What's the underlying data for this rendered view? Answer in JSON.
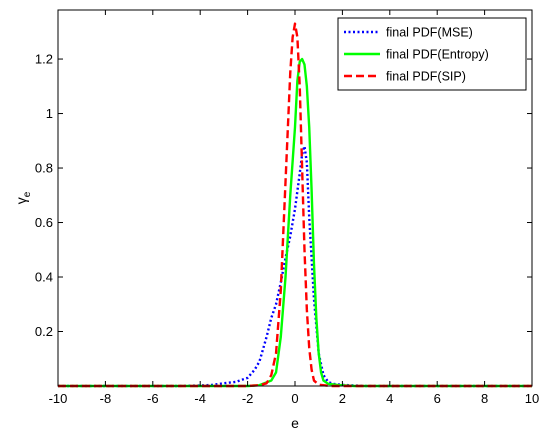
{
  "chart_data": {
    "type": "line",
    "xlabel": "e",
    "ylabel_main": "γ",
    "ylabel_sub": "e",
    "xlim": [
      -10,
      10
    ],
    "ylim": [
      0,
      1.38
    ],
    "xticks": [
      -10,
      -8,
      -6,
      -4,
      -2,
      0,
      2,
      4,
      6,
      8,
      10
    ],
    "yticks": [
      0.2,
      0.4,
      0.6,
      0.8,
      1,
      1.2
    ],
    "legend_position": "top-right",
    "grid": false,
    "series": [
      {
        "name": "final PDF(MSE)",
        "color": "#0000ff",
        "style": "dotted",
        "x": [
          -10,
          -5,
          -4,
          -3.5,
          -3,
          -2.5,
          -2,
          -1.7,
          -1.5,
          -1.2,
          -1,
          -0.8,
          -0.6,
          -0.4,
          -0.2,
          0,
          0.2,
          0.3,
          0.4,
          0.5,
          0.6,
          0.8,
          1.0,
          1.2,
          1.4,
          1.6,
          2,
          2.5,
          3,
          10
        ],
        "y": [
          0,
          0,
          0.002,
          0.004,
          0.01,
          0.015,
          0.03,
          0.06,
          0.09,
          0.18,
          0.25,
          0.3,
          0.38,
          0.47,
          0.55,
          0.65,
          0.78,
          0.85,
          0.88,
          0.82,
          0.62,
          0.32,
          0.12,
          0.04,
          0.015,
          0.008,
          0.004,
          0.002,
          0,
          0
        ]
      },
      {
        "name": "final PDF(Entropy)",
        "color": "#00ff00",
        "style": "solid",
        "x": [
          -10,
          -2,
          -1.5,
          -1,
          -0.8,
          -0.6,
          -0.4,
          -0.2,
          0,
          0.1,
          0.2,
          0.3,
          0.4,
          0.5,
          0.6,
          0.7,
          0.8,
          0.9,
          1.0,
          1.1,
          1.2,
          1.4,
          1.8,
          2.5,
          10
        ],
        "y": [
          0,
          0,
          0.003,
          0.02,
          0.05,
          0.18,
          0.4,
          0.7,
          0.95,
          1.12,
          1.19,
          1.2,
          1.18,
          1.1,
          0.95,
          0.72,
          0.45,
          0.25,
          0.12,
          0.05,
          0.02,
          0.008,
          0.004,
          0,
          0
        ]
      },
      {
        "name": "final PDF(SIP)",
        "color": "#ff0000",
        "style": "dashed",
        "x": [
          -10,
          -2,
          -1.5,
          -1.2,
          -1,
          -0.8,
          -0.6,
          -0.4,
          -0.2,
          -0.1,
          0,
          0.1,
          0.2,
          0.3,
          0.4,
          0.5,
          0.6,
          0.7,
          0.8,
          1.0,
          1.5,
          10
        ],
        "y": [
          0,
          0,
          0.003,
          0.01,
          0.04,
          0.12,
          0.35,
          0.75,
          1.15,
          1.28,
          1.33,
          1.28,
          1.1,
          0.8,
          0.5,
          0.28,
          0.14,
          0.06,
          0.02,
          0.005,
          0,
          0
        ]
      }
    ]
  }
}
